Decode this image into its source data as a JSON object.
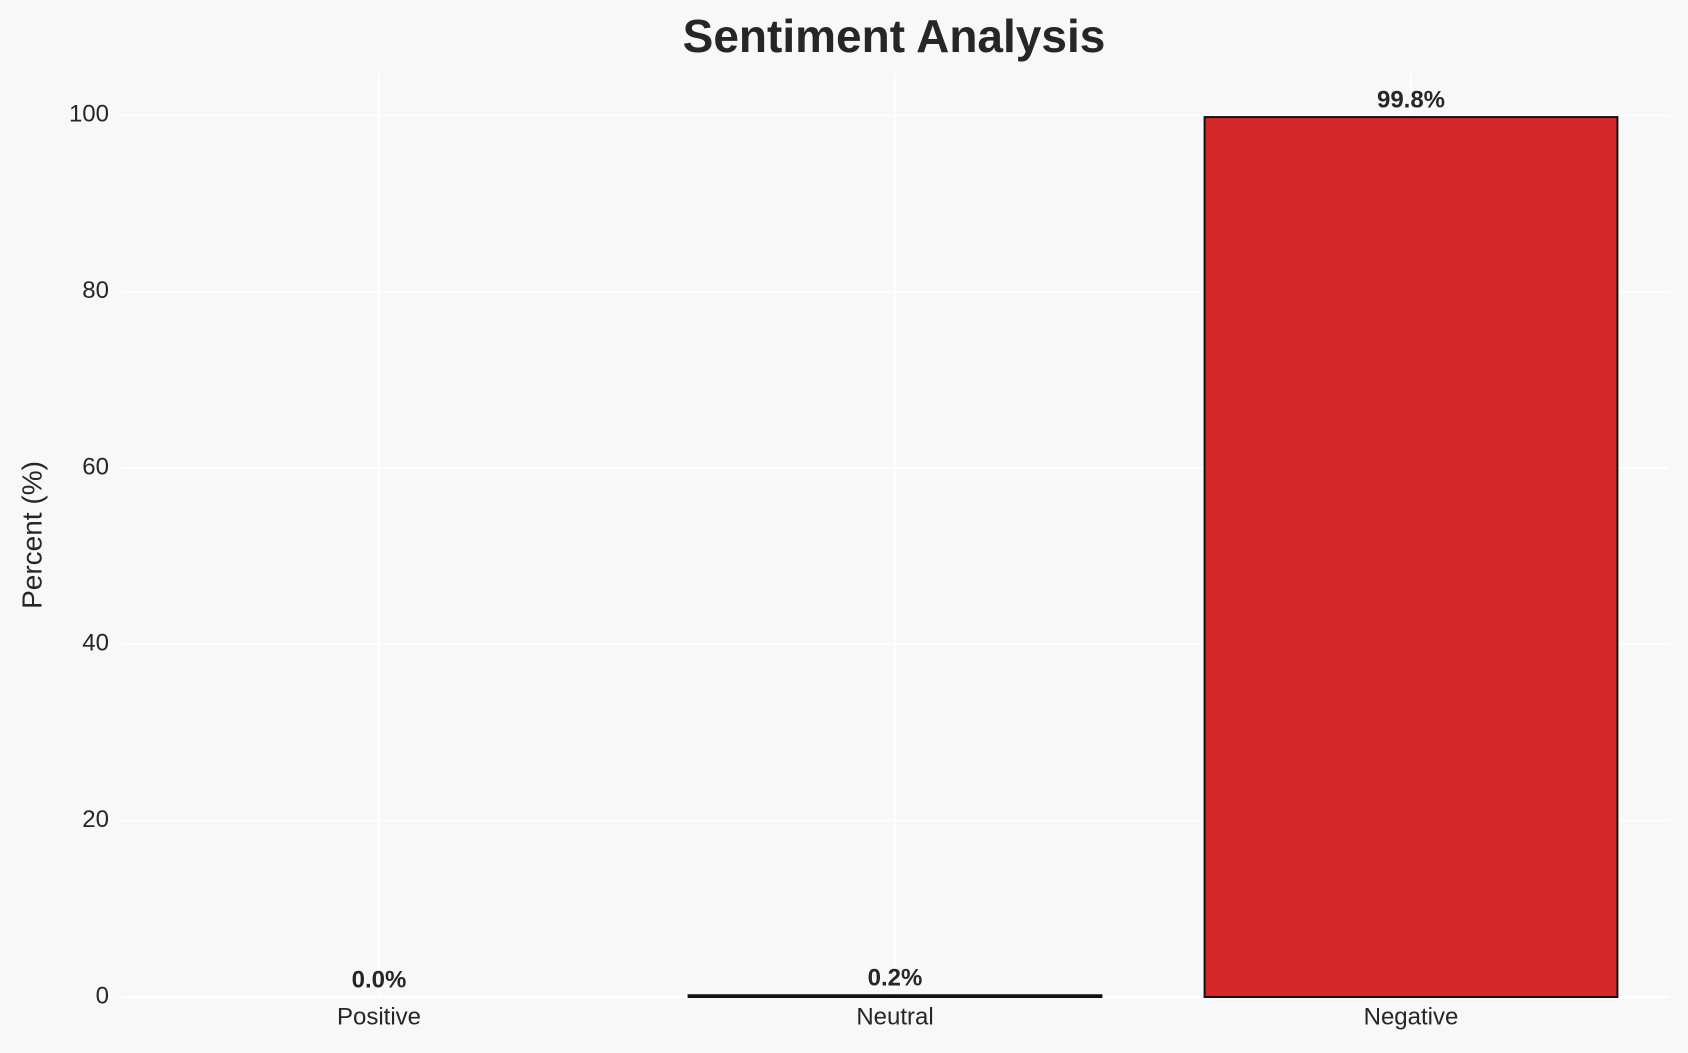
{
  "chart_data": {
    "type": "bar",
    "title": "Sentiment Analysis",
    "y_label": "Percent (%)",
    "categories": [
      "Positive",
      "Neutral",
      "Negative"
    ],
    "values": [
      0.0,
      0.2,
      99.8
    ],
    "value_labels": [
      "0.0%",
      "0.2%",
      "99.8%"
    ],
    "colors": [
      "#2ca02c",
      "#7f7f7f",
      "#d62728"
    ],
    "ylim": [
      0,
      104.8
    ],
    "yticks": [
      0,
      20,
      40,
      60,
      80,
      100
    ],
    "grid": true
  }
}
